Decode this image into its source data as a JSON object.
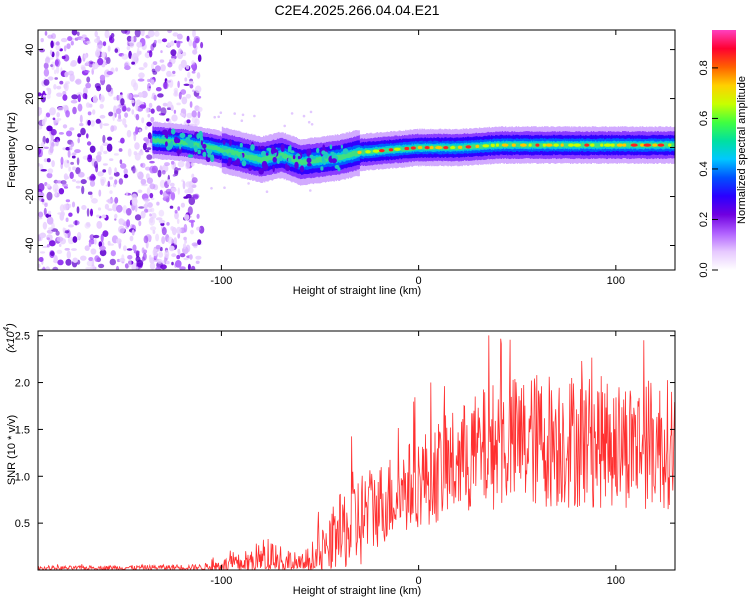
{
  "title": "C2E4.2025.266.04.04.E21",
  "chart_data": [
    {
      "type": "heatmap",
      "name": "spectrogram",
      "xlabel": "Height of straight line (km)",
      "ylabel": "Frequency (Hz)",
      "xlim": [
        -193,
        130
      ],
      "ylim": [
        -50,
        48
      ],
      "xticks": [
        -100,
        0,
        100
      ],
      "yticks": [
        -40,
        -20,
        0,
        20,
        40
      ],
      "colorbar": {
        "label": "Normalized spectral amplitude",
        "range": [
          0,
          0.95
        ],
        "ticks": [
          0.0,
          0.2,
          0.4,
          0.6,
          0.8
        ],
        "colors": [
          "#ffffff",
          "#e6c8ff",
          "#b060ff",
          "#7000e0",
          "#2a00ff",
          "#0050ff",
          "#00c8ff",
          "#00e0a0",
          "#40ff40",
          "#c8ff00",
          "#ffd000",
          "#ff6000",
          "#ff0030",
          "#ff40c0"
        ]
      },
      "features": {
        "noise_region_x": [
          -193,
          -110
        ],
        "track": [
          {
            "x": -135,
            "f": 3
          },
          {
            "x": -120,
            "f": 2
          },
          {
            "x": -105,
            "f": 0
          },
          {
            "x": -90,
            "f": -3
          },
          {
            "x": -80,
            "f": -5
          },
          {
            "x": -70,
            "f": -3
          },
          {
            "x": -60,
            "f": -6
          },
          {
            "x": -50,
            "f": -5
          },
          {
            "x": -40,
            "f": -4
          },
          {
            "x": -30,
            "f": -2
          },
          {
            "x": -15,
            "f": -1
          },
          {
            "x": 0,
            "f": 0
          },
          {
            "x": 20,
            "f": 0
          },
          {
            "x": 40,
            "f": 1
          },
          {
            "x": 60,
            "f": 1
          },
          {
            "x": 80,
            "f": 1
          },
          {
            "x": 100,
            "f": 1
          },
          {
            "x": 120,
            "f": 1
          },
          {
            "x": 130,
            "f": 1
          }
        ]
      }
    },
    {
      "type": "line",
      "name": "snr",
      "xlabel": "Height of straight line (km)",
      "ylabel": "SNR (10 * v/v)",
      "scale_label": "(x10",
      "scale_exponent": "4",
      "xlim": [
        -193,
        130
      ],
      "ylim": [
        0,
        2.55
      ],
      "xticks": [
        -100,
        0,
        100
      ],
      "yticks": [
        0.5,
        1.0,
        1.5,
        2.0,
        2.5
      ],
      "color": "#ff3030",
      "envelope": [
        {
          "x": -193,
          "mean": 0.02,
          "amp": 0.02
        },
        {
          "x": -110,
          "mean": 0.03,
          "amp": 0.03
        },
        {
          "x": -90,
          "mean": 0.06,
          "amp": 0.12
        },
        {
          "x": -75,
          "mean": 0.1,
          "amp": 0.3
        },
        {
          "x": -60,
          "mean": 0.05,
          "amp": 0.1
        },
        {
          "x": -45,
          "mean": 0.2,
          "amp": 0.35
        },
        {
          "x": -35,
          "mean": 0.45,
          "amp": 0.6
        },
        {
          "x": -20,
          "mean": 0.7,
          "amp": 0.45
        },
        {
          "x": 0,
          "mean": 0.95,
          "amp": 0.5
        },
        {
          "x": 20,
          "mean": 1.15,
          "amp": 0.6
        },
        {
          "x": 40,
          "mean": 1.35,
          "amp": 0.7
        },
        {
          "x": 70,
          "mean": 1.4,
          "amp": 0.75
        },
        {
          "x": 100,
          "mean": 1.35,
          "amp": 0.7
        },
        {
          "x": 130,
          "mean": 1.35,
          "amp": 0.7
        }
      ]
    }
  ]
}
